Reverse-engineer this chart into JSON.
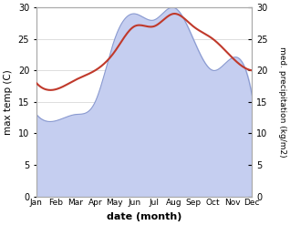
{
  "months": [
    "Jan",
    "Feb",
    "Mar",
    "Apr",
    "May",
    "Jun",
    "Jul",
    "Aug",
    "Sep",
    "Oct",
    "Nov",
    "Dec"
  ],
  "temp": [
    18,
    17,
    18.5,
    20,
    23,
    27,
    27,
    29,
    27,
    25,
    22,
    20
  ],
  "precip": [
    13,
    12,
    13,
    15,
    25,
    29,
    28,
    30,
    25,
    20,
    22,
    16
  ],
  "temp_color": "#c0392b",
  "precip_fill_color": "#c5cef0",
  "precip_line_color": "#8a9ad0",
  "xlabel": "date (month)",
  "ylabel_left": "max temp (C)",
  "ylabel_right": "med. precipitation (kg/m2)",
  "ylim": [
    0,
    30
  ],
  "yticks": [
    0,
    5,
    10,
    15,
    20,
    25,
    30
  ]
}
